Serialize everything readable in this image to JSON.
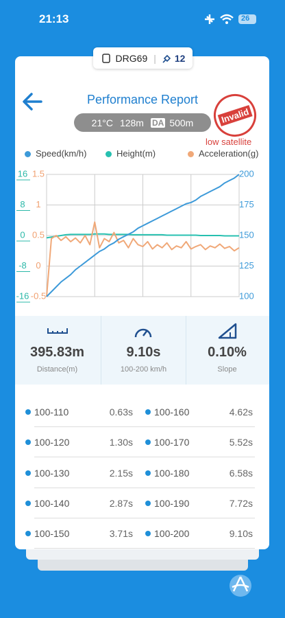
{
  "status_bar": {
    "time": "21:13",
    "battery": "26"
  },
  "device_tag": {
    "device": "DRG69",
    "satellites": "12"
  },
  "report": {
    "title": "Performance Report",
    "stamp": "Invalid",
    "warning": "low satellite",
    "conditions": {
      "temperature": "21°C",
      "altitude": "128m",
      "da_label": "DA",
      "da_value": "500m"
    }
  },
  "chart_data": {
    "type": "line",
    "grid": true,
    "ylim": [
      -16,
      16
    ],
    "yticks": [
      16,
      8,
      0,
      -8,
      -16
    ],
    "y3lim": [
      -0.5,
      1.5
    ],
    "y3ticks": [
      1.5,
      1,
      0.5,
      0,
      -0.5
    ],
    "y2lim": [
      100,
      200
    ],
    "y2ticks": [
      200,
      175,
      150,
      125,
      100
    ],
    "series": [
      {
        "name": "Speed(km/h)",
        "color": "#3d9ad9",
        "axis": "y2",
        "values": [
          100,
          104,
          108,
          112,
          115,
          118,
          122,
          125,
          128,
          131,
          134,
          137,
          139,
          142,
          144,
          147,
          149,
          151,
          153,
          156,
          158,
          160,
          162,
          164,
          166,
          168,
          170,
          172,
          174,
          176,
          177,
          179,
          182,
          184,
          186,
          188,
          190,
          193,
          195,
          197,
          200
        ]
      },
      {
        "name": "Height(m)",
        "color": "#27c0b0",
        "axis": "y",
        "values": [
          -0.6,
          -0.4,
          -0.2,
          0,
          0.2,
          0.3,
          0.3,
          0.3,
          0.3,
          0.3,
          0.4,
          0.4,
          0.4,
          0.3,
          0.3,
          0.3,
          0.3,
          0.3,
          0.2,
          0.2,
          0.2,
          0.2,
          0.2,
          0.2,
          0.2,
          0.1,
          0.1,
          0.1,
          0.1,
          0.1,
          0.1,
          0.1,
          0,
          0,
          0,
          0,
          0,
          -0.1,
          -0.1,
          -0.1,
          -0.1
        ]
      },
      {
        "name": "Acceleration(g)",
        "color": "#f0a878",
        "axis": "y3",
        "values": [
          -0.5,
          0.45,
          0.5,
          0.42,
          0.48,
          0.4,
          0.46,
          0.38,
          0.5,
          0.35,
          0.72,
          0.3,
          0.45,
          0.4,
          0.55,
          0.38,
          0.42,
          0.3,
          0.45,
          0.35,
          0.32,
          0.4,
          0.28,
          0.35,
          0.3,
          0.38,
          0.27,
          0.33,
          0.3,
          0.4,
          0.28,
          0.32,
          0.35,
          0.27,
          0.33,
          0.3,
          0.36,
          0.29,
          0.32,
          0.25,
          0.3
        ]
      }
    ]
  },
  "stats": [
    {
      "value": "395.83m",
      "label": "Distance(m)"
    },
    {
      "value": "9.10s",
      "label": "100-200 km/h"
    },
    {
      "value": "0.10%",
      "label": "Slope"
    }
  ],
  "splits": [
    [
      {
        "range": "100-110",
        "time": "0.63s"
      },
      {
        "range": "100-160",
        "time": "4.62s"
      }
    ],
    [
      {
        "range": "100-120",
        "time": "1.30s"
      },
      {
        "range": "100-170",
        "time": "5.52s"
      }
    ],
    [
      {
        "range": "100-130",
        "time": "2.15s"
      },
      {
        "range": "100-180",
        "time": "6.58s"
      }
    ],
    [
      {
        "range": "100-140",
        "time": "2.87s"
      },
      {
        "range": "100-190",
        "time": "7.72s"
      }
    ],
    [
      {
        "range": "100-150",
        "time": "3.71s"
      },
      {
        "range": "100-200",
        "time": "9.10s"
      }
    ]
  ]
}
